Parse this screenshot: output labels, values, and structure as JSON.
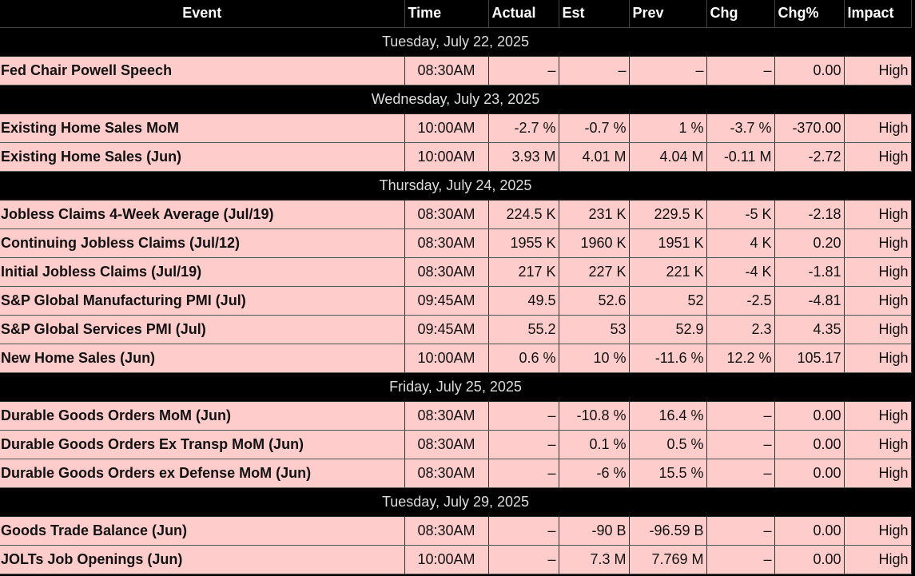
{
  "columns": [
    "Event",
    "Time",
    "Actual",
    "Est",
    "Prev",
    "Chg",
    "Chg%",
    "Impact"
  ],
  "groups": [
    {
      "date": "Tuesday, July 22, 2025",
      "rows": [
        [
          "Fed Chair Powell Speech",
          "08:30AM",
          "–",
          "–",
          "–",
          "–",
          "0.00",
          "High"
        ]
      ]
    },
    {
      "date": "Wednesday, July 23, 2025",
      "rows": [
        [
          "Existing Home Sales MoM",
          "10:00AM",
          "-2.7 %",
          "-0.7 %",
          "1 %",
          "-3.7 %",
          "-370.00",
          "High"
        ],
        [
          "Existing Home Sales (Jun)",
          "10:00AM",
          "3.93 M",
          "4.01 M",
          "4.04 M",
          "-0.11 M",
          "-2.72",
          "High"
        ]
      ]
    },
    {
      "date": "Thursday, July 24, 2025",
      "rows": [
        [
          "Jobless Claims 4-Week Average (Jul/19)",
          "08:30AM",
          "224.5 K",
          "231 K",
          "229.5 K",
          "-5 K",
          "-2.18",
          "High"
        ],
        [
          "Continuing Jobless Claims (Jul/12)",
          "08:30AM",
          "1955 K",
          "1960 K",
          "1951 K",
          "4 K",
          "0.20",
          "High"
        ],
        [
          "Initial Jobless Claims (Jul/19)",
          "08:30AM",
          "217 K",
          "227 K",
          "221 K",
          "-4 K",
          "-1.81",
          "High"
        ],
        [
          "S&P Global Manufacturing PMI (Jul)",
          "09:45AM",
          "49.5",
          "52.6",
          "52",
          "-2.5",
          "-4.81",
          "High"
        ],
        [
          "S&P Global Services PMI (Jul)",
          "09:45AM",
          "55.2",
          "53",
          "52.9",
          "2.3",
          "4.35",
          "High"
        ],
        [
          "New Home Sales (Jun)",
          "10:00AM",
          "0.6 %",
          "10 %",
          "-11.6 %",
          "12.2 %",
          "105.17",
          "High"
        ]
      ]
    },
    {
      "date": "Friday, July 25, 2025",
      "rows": [
        [
          "Durable Goods Orders MoM (Jun)",
          "08:30AM",
          "–",
          "-10.8 %",
          "16.4 %",
          "–",
          "0.00",
          "High"
        ],
        [
          "Durable Goods Orders Ex Transp MoM (Jun)",
          "08:30AM",
          "–",
          "0.1 %",
          "0.5 %",
          "–",
          "0.00",
          "High"
        ],
        [
          "Durable Goods Orders ex Defense MoM (Jun)",
          "08:30AM",
          "–",
          "-6 %",
          "15.5 %",
          "–",
          "0.00",
          "High"
        ]
      ]
    },
    {
      "date": "Tuesday, July 29, 2025",
      "rows": [
        [
          "Goods Trade Balance (Jun)",
          "08:30AM",
          "–",
          "-90 B",
          "-96.59 B",
          "–",
          "0.00",
          "High"
        ],
        [
          "JOLTs Job Openings (Jun)",
          "10:00AM",
          "–",
          "7.3 M",
          "7.769 M",
          "–",
          "0.00",
          "High"
        ]
      ]
    }
  ]
}
